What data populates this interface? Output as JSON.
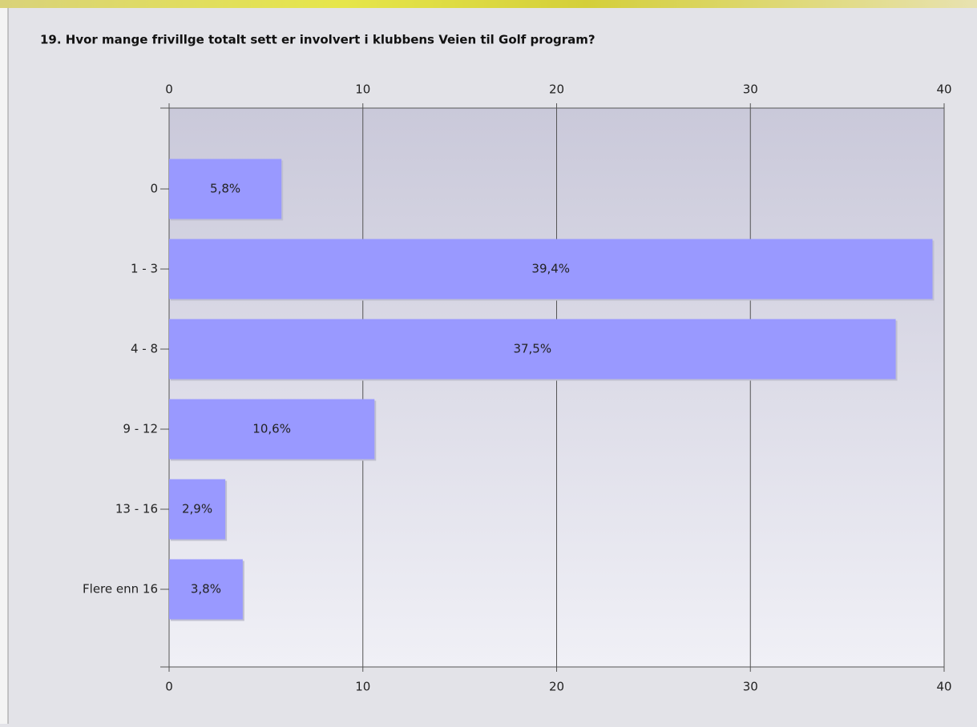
{
  "chart_data": {
    "type": "bar",
    "orientation": "horizontal",
    "title": "19. Hvor mange frivillge totalt sett er involvert i klubbens Veien til Golf program?",
    "categories": [
      "0",
      "1 - 3",
      "4 - 8",
      "9 - 12",
      "13 - 16",
      "Flere enn 16"
    ],
    "values": [
      5.8,
      39.4,
      37.5,
      10.6,
      2.9,
      3.8
    ],
    "value_labels": [
      "5,8%",
      "39,4%",
      "37,5%",
      "10,6%",
      "2,9%",
      "3,8%"
    ],
    "color": "#9999ff",
    "xlim": [
      0,
      40
    ],
    "xticks": [
      0,
      10,
      20,
      30,
      40
    ],
    "grid": true
  }
}
